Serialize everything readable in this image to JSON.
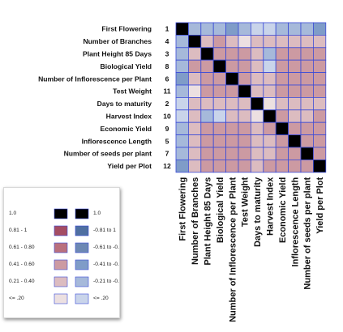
{
  "chart_data": {
    "type": "heatmap",
    "variables": [
      {
        "name": "First Flowering",
        "code": "1"
      },
      {
        "name": "Number of Branches",
        "code": "4"
      },
      {
        "name": "Plant Height 85 Days",
        "code": "3"
      },
      {
        "name": "Biological Yield",
        "code": "8"
      },
      {
        "name": "Number of Inflorescence per Plant",
        "code": "6"
      },
      {
        "name": "Test Weight",
        "code": "11"
      },
      {
        "name": "Days to maturity",
        "code": "2"
      },
      {
        "name": "Harvest Index",
        "code": "10"
      },
      {
        "name": "Economic Yield",
        "code": "9"
      },
      {
        "name": "Inflorescence Length",
        "code": "5"
      },
      {
        "name": "Number of seeds per plant",
        "code": "7"
      },
      {
        "name": "Yield per Plot",
        "code": "12"
      }
    ],
    "matrix": [
      [
        1.0,
        -0.3,
        -0.35,
        -0.4,
        -0.45,
        -0.3,
        -0.1,
        -0.15,
        -0.35,
        -0.25,
        -0.35,
        -0.45
      ],
      [
        -0.3,
        1.0,
        0.3,
        0.45,
        0.35,
        0.15,
        0.25,
        0.3,
        0.3,
        0.25,
        0.3,
        0.3
      ],
      [
        -0.35,
        0.3,
        1.0,
        0.6,
        0.45,
        0.5,
        0.3,
        -0.25,
        0.45,
        0.45,
        0.45,
        0.5
      ],
      [
        -0.4,
        0.45,
        0.6,
        1.0,
        0.55,
        0.5,
        0.3,
        -0.05,
        0.6,
        0.55,
        0.55,
        0.6
      ],
      [
        -0.45,
        0.35,
        0.45,
        0.55,
        1.0,
        0.5,
        0.3,
        0.3,
        0.5,
        0.45,
        0.45,
        0.5
      ],
      [
        -0.3,
        0.15,
        0.5,
        0.5,
        0.5,
        1.0,
        0.35,
        0.3,
        0.6,
        0.5,
        0.5,
        0.6
      ],
      [
        -0.1,
        0.25,
        0.3,
        0.3,
        0.3,
        0.35,
        1.0,
        0.15,
        0.35,
        0.25,
        0.3,
        0.35
      ],
      [
        -0.15,
        0.3,
        -0.25,
        -0.05,
        0.3,
        0.3,
        0.15,
        1.0,
        0.45,
        0.3,
        0.35,
        0.45
      ],
      [
        -0.35,
        0.3,
        0.45,
        0.6,
        0.5,
        0.6,
        0.35,
        0.45,
        1.0,
        0.55,
        0.55,
        0.6
      ],
      [
        -0.25,
        0.25,
        0.45,
        0.55,
        0.45,
        0.5,
        0.25,
        0.3,
        0.55,
        1.0,
        0.5,
        0.55
      ],
      [
        -0.35,
        0.3,
        0.45,
        0.55,
        0.45,
        0.5,
        0.3,
        0.35,
        0.55,
        0.5,
        1.0,
        0.6
      ],
      [
        -0.45,
        0.3,
        0.5,
        0.6,
        0.5,
        0.6,
        0.35,
        0.45,
        0.6,
        0.55,
        0.6,
        1.0
      ]
    ],
    "color_scale": {
      "positive": [
        {
          "label": "1.0",
          "color": "#000000"
        },
        {
          "label": "0.81 - 1",
          "color": "#a44d63"
        },
        {
          "label": "0.61 - 0.80",
          "color": "#b9707e"
        },
        {
          "label": "0.41 - 0.60",
          "color": "#cc9aa2"
        },
        {
          "label": "0.21 - 0.40",
          "color": "#dcbcc0"
        },
        {
          "label": "<= .20",
          "color": "#ece0e1"
        }
      ],
      "negative": [
        {
          "label": "1.0",
          "color": "#000000"
        },
        {
          "label": "-0.81 to 1",
          "color": "#4f6fa1"
        },
        {
          "label": "-0.61 to -0.8",
          "color": "#6d88b4"
        },
        {
          "label": "-0.41 to -0.6",
          "color": "#7f9cc8"
        },
        {
          "label": "-0.21 to -0.4",
          "color": "#a6b9da"
        },
        {
          "label": "<= .20",
          "color": "#c9d4ea"
        }
      ]
    },
    "grid": true,
    "legend_position": "bottom-left"
  }
}
